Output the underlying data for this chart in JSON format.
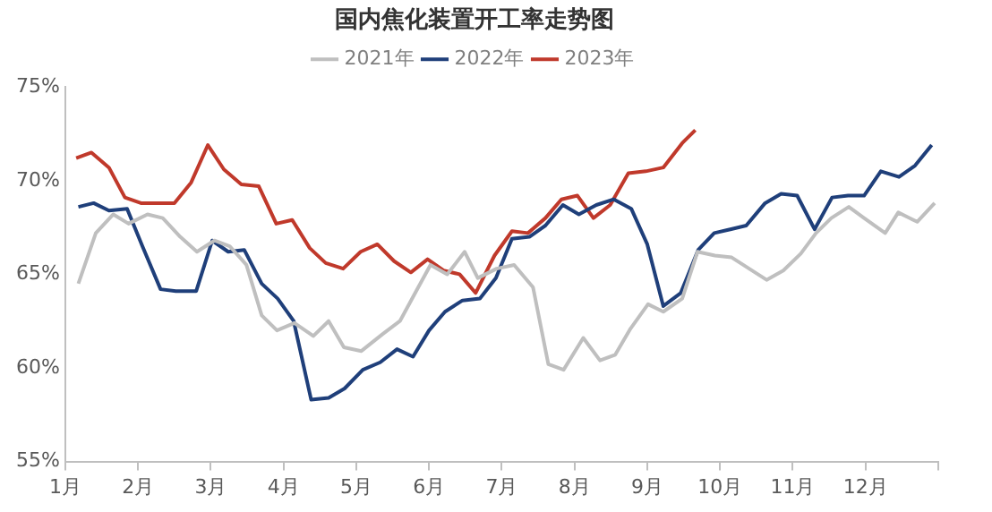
{
  "chart_data": {
    "type": "line",
    "title": "国内焦化装置开工率走势图",
    "legend": "top",
    "grid": false,
    "marker": "none",
    "line_style": "solid",
    "xlim": [
      1,
      13
    ],
    "xticks": [
      {
        "value": 1,
        "label": "1月"
      },
      {
        "value": 2,
        "label": "2月"
      },
      {
        "value": 3,
        "label": "3月"
      },
      {
        "value": 4,
        "label": "4月"
      },
      {
        "value": 5,
        "label": "5月"
      },
      {
        "value": 6,
        "label": "6月"
      },
      {
        "value": 7,
        "label": "7月"
      },
      {
        "value": 8,
        "label": "8月"
      },
      {
        "value": 9,
        "label": "9月"
      },
      {
        "value": 10,
        "label": "10月"
      },
      {
        "value": 11,
        "label": "11月"
      },
      {
        "value": 12,
        "label": "12月"
      },
      {
        "value": 13,
        "label": null
      }
    ],
    "ylim": [
      55,
      75
    ],
    "yticks": [
      {
        "value": 55,
        "label": "55%"
      },
      {
        "value": 60,
        "label": "60%"
      },
      {
        "value": 65,
        "label": "65%"
      },
      {
        "value": 70,
        "label": "70%"
      },
      {
        "value": 75,
        "label": "75%"
      }
    ],
    "series": [
      {
        "name": "2021年",
        "color": "#bfbfbf",
        "x": [
          1.18,
          1.42,
          1.66,
          1.87,
          2.13,
          2.34,
          2.58,
          2.81,
          3.05,
          3.26,
          3.49,
          3.7,
          3.91,
          4.15,
          4.41,
          4.62,
          4.83,
          5.07,
          5.36,
          5.6,
          5.81,
          6.02,
          6.25,
          6.49,
          6.67,
          6.93,
          7.17,
          7.43,
          7.64,
          7.85,
          8.12,
          8.35,
          8.56,
          8.77,
          9.01,
          9.22,
          9.48,
          9.69,
          9.93,
          10.16,
          10.4,
          10.64,
          10.87,
          11.11,
          11.32,
          11.53,
          11.77,
          11.98,
          12.27,
          12.45,
          12.71,
          12.95
        ],
        "values": [
          64.5,
          67.2,
          68.2,
          67.7,
          68.2,
          68.0,
          67.0,
          66.2,
          66.8,
          66.5,
          65.5,
          62.8,
          62.0,
          62.4,
          61.7,
          62.5,
          61.1,
          60.9,
          61.8,
          62.5,
          64.0,
          65.5,
          65.0,
          66.2,
          64.8,
          65.3,
          65.5,
          64.3,
          60.2,
          59.9,
          61.6,
          60.4,
          60.7,
          62.1,
          63.4,
          63.0,
          63.7,
          66.2,
          66.0,
          65.9,
          65.3,
          64.7,
          65.2,
          66.1,
          67.2,
          68.0,
          68.6,
          68.0,
          67.2,
          68.3,
          67.8,
          68.8
        ]
      },
      {
        "name": "2022年",
        "color": "#1f3f7a",
        "x": [
          1.18,
          1.39,
          1.6,
          1.85,
          2.06,
          2.31,
          2.52,
          2.8,
          3.02,
          3.24,
          3.46,
          3.7,
          3.92,
          4.14,
          4.38,
          4.62,
          4.84,
          5.09,
          5.33,
          5.56,
          5.78,
          6.0,
          6.22,
          6.46,
          6.7,
          6.92,
          7.14,
          7.38,
          7.6,
          7.84,
          8.06,
          8.3,
          8.54,
          8.78,
          9.0,
          9.22,
          9.46,
          9.7,
          9.92,
          10.14,
          10.36,
          10.62,
          10.84,
          11.06,
          11.3,
          11.54,
          11.76,
          11.98,
          12.21,
          12.46,
          12.68,
          12.91
        ],
        "values": [
          68.6,
          68.8,
          68.4,
          68.5,
          66.5,
          64.2,
          64.1,
          64.1,
          66.8,
          66.2,
          66.3,
          64.5,
          63.7,
          62.5,
          58.3,
          58.4,
          58.9,
          59.9,
          60.3,
          61.0,
          60.6,
          62.0,
          63.0,
          63.6,
          63.7,
          64.8,
          66.9,
          67.0,
          67.6,
          68.7,
          68.2,
          68.7,
          69.0,
          68.5,
          66.6,
          63.3,
          64.0,
          66.3,
          67.2,
          67.4,
          67.6,
          68.8,
          69.3,
          69.2,
          67.4,
          69.1,
          69.2,
          69.2,
          70.5,
          70.2,
          70.8,
          71.9
        ]
      },
      {
        "name": "2023年",
        "color": "#c0392b",
        "x": [
          1.15,
          1.36,
          1.6,
          1.82,
          2.04,
          2.29,
          2.5,
          2.73,
          2.96,
          3.18,
          3.42,
          3.66,
          3.9,
          4.12,
          4.36,
          4.58,
          4.82,
          5.06,
          5.29,
          5.52,
          5.75,
          5.98,
          6.2,
          6.42,
          6.64,
          6.9,
          7.14,
          7.36,
          7.6,
          7.82,
          8.04,
          8.26,
          8.49,
          8.74,
          8.98,
          9.22,
          9.48,
          9.66
        ],
        "values": [
          71.2,
          71.5,
          70.7,
          69.1,
          68.8,
          68.8,
          68.8,
          69.9,
          71.9,
          70.6,
          69.8,
          69.7,
          67.7,
          67.9,
          66.4,
          65.6,
          65.3,
          66.2,
          66.6,
          65.7,
          65.1,
          65.8,
          65.2,
          65.0,
          64.0,
          66.0,
          67.3,
          67.2,
          68.0,
          69.0,
          69.2,
          68.0,
          68.7,
          70.4,
          70.5,
          70.7,
          72.0,
          72.7
        ]
      }
    ]
  }
}
